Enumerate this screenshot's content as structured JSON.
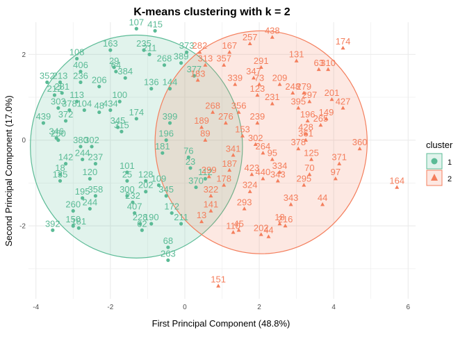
{
  "chart_data": {
    "type": "scatter",
    "title": "K-means clustering with k = 2",
    "xlabel": "First Principal Component (48.8%)",
    "ylabel": "Second Principal Component (17.0%)",
    "xlim": [
      -4.2,
      6.2
    ],
    "ylim": [
      -3.7,
      2.75
    ],
    "x_ticks": [
      -4,
      -2,
      0,
      2,
      4,
      6
    ],
    "y_ticks": [
      -2,
      0,
      2
    ],
    "grid": true,
    "legend": {
      "title": "cluster",
      "position": "right",
      "entries": [
        {
          "label": "1",
          "color": "#5bbb96",
          "marker": "circle"
        },
        {
          "label": "2",
          "color": "#f47e5c",
          "marker": "triangle"
        }
      ]
    },
    "colors": {
      "cluster1": "#5bbb96",
      "cluster2": "#f47e5c"
    },
    "ellipses": [
      {
        "cluster": "1",
        "center": [
          -1.3,
          -0.15
        ],
        "rx": 2.85,
        "ry": 2.6
      },
      {
        "cluster": "2",
        "center": [
          2.05,
          -0.05
        ],
        "rx": 2.85,
        "ry": 2.6
      }
    ],
    "series": [
      {
        "name": "1",
        "points": [
          {
            "x": -1.3,
            "y": 2.6,
            "label": "107"
          },
          {
            "x": -0.8,
            "y": 2.55,
            "label": "415"
          },
          {
            "x": -2.0,
            "y": 2.1,
            "label": "163"
          },
          {
            "x": -2.9,
            "y": 1.9,
            "label": "108"
          },
          {
            "x": -1.1,
            "y": 2.1,
            "label": "235"
          },
          {
            "x": -0.95,
            "y": 2.0,
            "label": "211"
          },
          {
            "x": -2.8,
            "y": 1.6,
            "label": "406"
          },
          {
            "x": -1.9,
            "y": 1.7,
            "label": "29"
          },
          {
            "x": -1.85,
            "y": 1.6,
            "label": "64"
          },
          {
            "x": -3.7,
            "y": 1.35,
            "label": "352"
          },
          {
            "x": -3.35,
            "y": 1.35,
            "label": "213"
          },
          {
            "x": -2.8,
            "y": 1.35,
            "label": "236"
          },
          {
            "x": -3.3,
            "y": 1.1,
            "label": "281"
          },
          {
            "x": -3.5,
            "y": 1.05,
            "label": "212"
          },
          {
            "x": -2.3,
            "y": 1.25,
            "label": "206"
          },
          {
            "x": -1.6,
            "y": 1.45,
            "label": "384"
          },
          {
            "x": -0.55,
            "y": 1.75,
            "label": "268"
          },
          {
            "x": -0.1,
            "y": 1.8,
            "label": "389"
          },
          {
            "x": 0.05,
            "y": 2.05,
            "label": "373"
          },
          {
            "x": -2.9,
            "y": 0.9,
            "label": "113"
          },
          {
            "x": -3.4,
            "y": 0.75,
            "label": "303"
          },
          {
            "x": -3.1,
            "y": 0.7,
            "label": "378"
          },
          {
            "x": -2.7,
            "y": 0.7,
            "label": "104"
          },
          {
            "x": -2.3,
            "y": 0.65,
            "label": "48"
          },
          {
            "x": -1.75,
            "y": 0.9,
            "label": "100"
          },
          {
            "x": -3.8,
            "y": 0.4,
            "label": "439"
          },
          {
            "x": -3.2,
            "y": 0.45,
            "label": "372"
          },
          {
            "x": -2.0,
            "y": 0.7,
            "label": "434"
          },
          {
            "x": -1.8,
            "y": 0.3,
            "label": "345"
          },
          {
            "x": -3.45,
            "y": 0.05,
            "label": "346"
          },
          {
            "x": -3.4,
            "y": 0.0,
            "label": "250"
          },
          {
            "x": -2.8,
            "y": -0.15,
            "label": "380"
          },
          {
            "x": -2.5,
            "y": -0.15,
            "label": "302"
          },
          {
            "x": -1.7,
            "y": 0.2,
            "label": "315"
          },
          {
            "x": -3.2,
            "y": -0.55,
            "label": "142"
          },
          {
            "x": -2.75,
            "y": -0.45,
            "label": "244"
          },
          {
            "x": -2.4,
            "y": -0.55,
            "label": "237"
          },
          {
            "x": -3.35,
            "y": -0.8,
            "label": "18"
          },
          {
            "x": -3.35,
            "y": -0.95,
            "label": "135"
          },
          {
            "x": -2.55,
            "y": -0.9,
            "label": "120"
          },
          {
            "x": -1.55,
            "y": -0.75,
            "label": "101"
          },
          {
            "x": -1.55,
            "y": -0.95,
            "label": "25"
          },
          {
            "x": -2.75,
            "y": -1.35,
            "label": "195"
          },
          {
            "x": -2.4,
            "y": -1.3,
            "label": "358"
          },
          {
            "x": -1.55,
            "y": -1.3,
            "label": "300"
          },
          {
            "x": -3.0,
            "y": -1.65,
            "label": "260"
          },
          {
            "x": -2.55,
            "y": -1.6,
            "label": "244"
          },
          {
            "x": -1.4,
            "y": -1.45,
            "label": "232"
          },
          {
            "x": -1.05,
            "y": -1.2,
            "label": "202"
          },
          {
            "x": -1.05,
            "y": -0.95,
            "label": "128"
          },
          {
            "x": -0.7,
            "y": -1.05,
            "label": "109"
          },
          {
            "x": -0.5,
            "y": -1.3,
            "label": "345"
          },
          {
            "x": -1.35,
            "y": -1.7,
            "label": "407"
          },
          {
            "x": -2.85,
            "y": -2.05,
            "label": "181"
          },
          {
            "x": -3.0,
            "y": -2.0,
            "label": "150"
          },
          {
            "x": -1.2,
            "y": -1.95,
            "label": "228"
          },
          {
            "x": -0.9,
            "y": -1.95,
            "label": "190"
          },
          {
            "x": -1.15,
            "y": -2.1,
            "label": "62"
          },
          {
            "x": -0.35,
            "y": -1.7,
            "label": "172"
          },
          {
            "x": -0.1,
            "y": -1.95,
            "label": "211"
          },
          {
            "x": -3.55,
            "y": -2.1,
            "label": "392"
          },
          {
            "x": -0.45,
            "y": -2.5,
            "label": "68"
          },
          {
            "x": -0.45,
            "y": -2.8,
            "label": "263"
          },
          {
            "x": -0.4,
            "y": 0.4,
            "label": "399"
          },
          {
            "x": -0.5,
            "y": 0.0,
            "label": "196"
          },
          {
            "x": 0.15,
            "y": -0.65,
            "label": "23"
          },
          {
            "x": 0.3,
            "y": -1.1,
            "label": "370"
          },
          {
            "x": 0.55,
            "y": -0.9,
            "label": "112"
          },
          {
            "x": 0.1,
            "y": -0.4,
            "label": "76"
          },
          {
            "x": -0.6,
            "y": -0.3,
            "label": "181"
          },
          {
            "x": -1.3,
            "y": 0.5,
            "label": "174"
          },
          {
            "x": -0.9,
            "y": 1.2,
            "label": "136"
          },
          {
            "x": -0.4,
            "y": 1.2,
            "label": "144"
          },
          {
            "x": 0.25,
            "y": 1.5,
            "label": "377"
          }
        ]
      },
      {
        "name": "2",
        "points": [
          {
            "x": 4.25,
            "y": 2.15,
            "label": "174"
          },
          {
            "x": 2.35,
            "y": 2.4,
            "label": "438"
          },
          {
            "x": 1.75,
            "y": 2.25,
            "label": "257"
          },
          {
            "x": 1.2,
            "y": 2.05,
            "label": "167"
          },
          {
            "x": 3.0,
            "y": 1.85,
            "label": "131"
          },
          {
            "x": 3.85,
            "y": 1.65,
            "label": "310"
          },
          {
            "x": 3.6,
            "y": 1.65,
            "label": "63"
          },
          {
            "x": 2.05,
            "y": 1.7,
            "label": "291"
          },
          {
            "x": 0.4,
            "y": 2.05,
            "label": "282"
          },
          {
            "x": 0.55,
            "y": 1.75,
            "label": "313"
          },
          {
            "x": 1.05,
            "y": 1.75,
            "label": "357"
          },
          {
            "x": 1.85,
            "y": 1.45,
            "label": "347"
          },
          {
            "x": 2.0,
            "y": 1.3,
            "label": "73"
          },
          {
            "x": 2.55,
            "y": 1.3,
            "label": "209"
          },
          {
            "x": 2.9,
            "y": 1.1,
            "label": "248"
          },
          {
            "x": 3.2,
            "y": 1.1,
            "label": "279"
          },
          {
            "x": 3.35,
            "y": 0.9,
            "label": "297"
          },
          {
            "x": 3.95,
            "y": 0.95,
            "label": "201"
          },
          {
            "x": 4.25,
            "y": 0.75,
            "label": "427"
          },
          {
            "x": 3.05,
            "y": 0.75,
            "label": "395"
          },
          {
            "x": 3.8,
            "y": 0.5,
            "label": "149"
          },
          {
            "x": 3.65,
            "y": 0.35,
            "label": "265"
          },
          {
            "x": 3.3,
            "y": 0.45,
            "label": "196"
          },
          {
            "x": 3.25,
            "y": 0.15,
            "label": "428"
          },
          {
            "x": 3.25,
            "y": 0.0,
            "label": "361"
          },
          {
            "x": 3.05,
            "y": -0.2,
            "label": "378"
          },
          {
            "x": 3.4,
            "y": -0.45,
            "label": "125"
          },
          {
            "x": 4.7,
            "y": -0.2,
            "label": "360"
          },
          {
            "x": 4.15,
            "y": -0.55,
            "label": "371"
          },
          {
            "x": 3.35,
            "y": -0.8,
            "label": "70"
          },
          {
            "x": 4.05,
            "y": -0.9,
            "label": "97"
          },
          {
            "x": 3.2,
            "y": -1.05,
            "label": "295"
          },
          {
            "x": 5.7,
            "y": -1.1,
            "label": "164"
          },
          {
            "x": 3.7,
            "y": -1.5,
            "label": "44"
          },
          {
            "x": 2.85,
            "y": -1.5,
            "label": "343"
          },
          {
            "x": 2.55,
            "y": -0.75,
            "label": "334"
          },
          {
            "x": 2.5,
            "y": -0.95,
            "label": "343"
          },
          {
            "x": 2.35,
            "y": -0.45,
            "label": "95"
          },
          {
            "x": 2.1,
            "y": -0.3,
            "label": "264"
          },
          {
            "x": 2.1,
            "y": -0.9,
            "label": "440"
          },
          {
            "x": 1.8,
            "y": -0.8,
            "label": "423"
          },
          {
            "x": 1.75,
            "y": -1.2,
            "label": "324"
          },
          {
            "x": 1.6,
            "y": -1.6,
            "label": "293"
          },
          {
            "x": 2.7,
            "y": -2.0,
            "label": "216"
          },
          {
            "x": 2.55,
            "y": -1.95,
            "label": "18"
          },
          {
            "x": 1.45,
            "y": -2.1,
            "label": "45"
          },
          {
            "x": 2.05,
            "y": -2.2,
            "label": "202"
          },
          {
            "x": 2.25,
            "y": -2.25,
            "label": "44"
          },
          {
            "x": 1.3,
            "y": -2.15,
            "label": "110"
          },
          {
            "x": 0.7,
            "y": -1.65,
            "label": "141"
          },
          {
            "x": 0.7,
            "y": -1.3,
            "label": "322"
          },
          {
            "x": 0.45,
            "y": -1.9,
            "label": "13"
          },
          {
            "x": 0.9,
            "y": -3.4,
            "label": "151"
          },
          {
            "x": 0.65,
            "y": -0.85,
            "label": "299"
          },
          {
            "x": 1.05,
            "y": -1.05,
            "label": "178"
          },
          {
            "x": 1.2,
            "y": -0.7,
            "label": "187"
          },
          {
            "x": 0.35,
            "y": 1.4,
            "label": "183"
          },
          {
            "x": 1.35,
            "y": 1.3,
            "label": "339"
          },
          {
            "x": 1.95,
            "y": 1.05,
            "label": "123"
          },
          {
            "x": 2.35,
            "y": 0.85,
            "label": "231"
          },
          {
            "x": 1.45,
            "y": 0.65,
            "label": "356"
          },
          {
            "x": 0.75,
            "y": 0.65,
            "label": "268"
          },
          {
            "x": 0.45,
            "y": 0.3,
            "label": "189"
          },
          {
            "x": 1.55,
            "y": 0.1,
            "label": "153"
          },
          {
            "x": 1.1,
            "y": 0.4,
            "label": "276"
          },
          {
            "x": 1.95,
            "y": 0.4,
            "label": "239"
          },
          {
            "x": 0.55,
            "y": 0.0,
            "label": "89"
          },
          {
            "x": 1.9,
            "y": -0.1,
            "label": "302"
          },
          {
            "x": 1.3,
            "y": -0.35,
            "label": "341"
          }
        ]
      }
    ]
  }
}
